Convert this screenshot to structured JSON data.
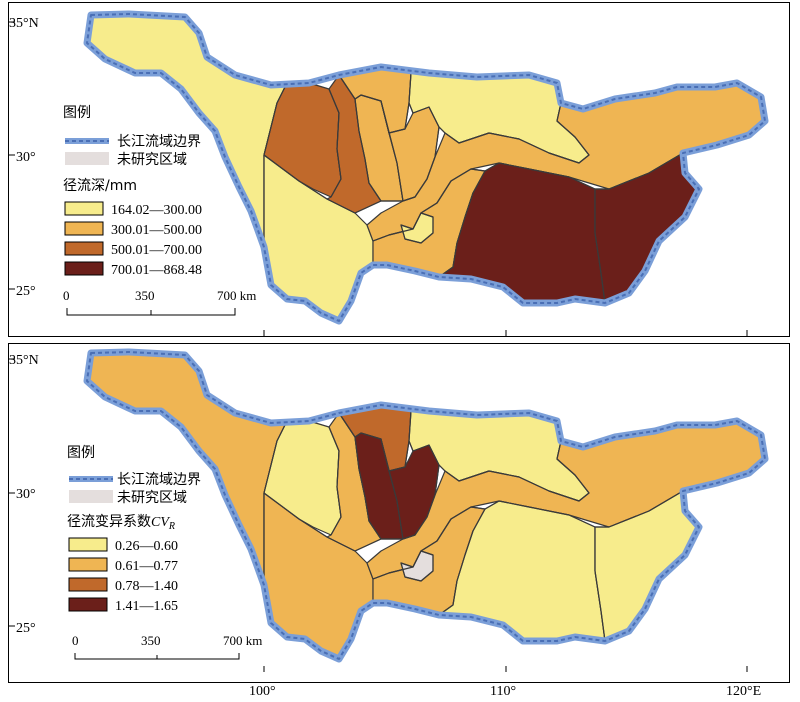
{
  "colors": {
    "boundary": "#7b9fd8",
    "unstudied": "#e4dedd",
    "c1": "#f7ec8c",
    "c2": "#efb553",
    "c3": "#c0692b",
    "c4": "#6b1f1a"
  },
  "axes": {
    "lat_labels": [
      "35°N",
      "30°",
      "25°"
    ],
    "lon_labels": [
      "100°",
      "110°",
      "120°E"
    ]
  },
  "maps": [
    {
      "legend_title": "图例",
      "boundary_label": "长江流域边界",
      "unstudied_label": "未研究区域",
      "classes_title": "径流深/mm",
      "classes": [
        {
          "label": "164.02—300.00",
          "color": "#f7ec8c"
        },
        {
          "label": "300.01—500.00",
          "color": "#efb553"
        },
        {
          "label": "500.01—700.00",
          "color": "#c0692b"
        },
        {
          "label": "700.01—868.48",
          "color": "#6b1f1a"
        }
      ],
      "scale_ticks": [
        "0",
        "350",
        "700 km"
      ],
      "region_colors": {
        "source": "#f7ec8c",
        "jinsha": "#f7ec8c",
        "min_west": "#c0692b",
        "min_east": "#c0692b",
        "tuo": "#efb553",
        "jialing_w": "#efb553",
        "jialing_e": "#efb553",
        "han": "#f7ec8c",
        "upper_main": "#efb553",
        "wu": "#efb553",
        "wu_small": "#f7ec8c",
        "dongting": "#6b1f1a",
        "poyang": "#6b1f1a",
        "lower": "#e4dedd"
      }
    },
    {
      "legend_title": "图例",
      "boundary_label": "长江流域边界",
      "unstudied_label": "未研究区域",
      "classes_title": "径流变异系数",
      "classes_title_var": "CV",
      "classes_title_sub": "R",
      "classes": [
        {
          "label": "0.26—0.60",
          "color": "#f7ec8c"
        },
        {
          "label": "0.61—0.77",
          "color": "#efb553"
        },
        {
          "label": "0.78—1.40",
          "color": "#c0692b"
        },
        {
          "label": "1.41—1.65",
          "color": "#6b1f1a"
        }
      ],
      "scale_ticks": [
        "0",
        "350",
        "700 km"
      ],
      "region_colors": {
        "source": "#efb553",
        "jinsha": "#efb553",
        "min_west": "#f7ec8c",
        "min_east": "#efb553",
        "tuo": "#6b1f1a",
        "jialing_w": "#c0692b",
        "jialing_e": "#6b1f1a",
        "han": "#f7ec8c",
        "upper_main": "#efb553",
        "wu": "#efb553",
        "wu_small": "#e4dedd",
        "dongting": "#f7ec8c",
        "poyang": "#f7ec8c",
        "lower": "#e4dedd"
      }
    }
  ]
}
